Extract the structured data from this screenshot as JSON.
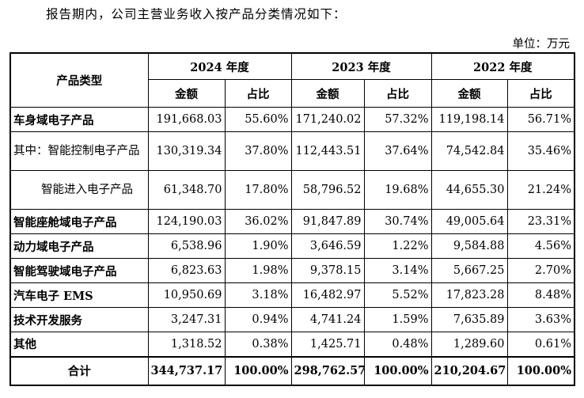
{
  "intro": "报告期内，公司主营业务收入按产品分类情况如下：",
  "unit": "单位：万元",
  "headers": {
    "category": "产品类型",
    "years": [
      "2024 年度",
      "2023 年度",
      "2022 年度"
    ],
    "amount": "金额",
    "ratio": "占比"
  },
  "rows": [
    {
      "name": "车身域电子产品",
      "v": [
        "191,668.03",
        "55.60%",
        "171,240.02",
        "57.32%",
        "119,198.14",
        "56.71%"
      ]
    },
    {
      "name": "其中：智能控制电子产品",
      "v": [
        "130,319.34",
        "37.80%",
        "112,443.51",
        "37.64%",
        "74,542.84",
        "35.46%"
      ]
    },
    {
      "name": "智能进入电子产品",
      "v": [
        "61,348.70",
        "17.80%",
        "58,796.52",
        "19.68%",
        "44,655.30",
        "21.24%"
      ]
    },
    {
      "name": "智能座舱域电子产品",
      "v": [
        "124,190.03",
        "36.02%",
        "91,847.89",
        "30.74%",
        "49,005.64",
        "23.31%"
      ]
    },
    {
      "name": "动力域电子产品",
      "v": [
        "6,538.96",
        "1.90%",
        "3,646.59",
        "1.22%",
        "9,584.88",
        "4.56%"
      ]
    },
    {
      "name": "智能驾驶域电子产品",
      "v": [
        "6,823.63",
        "1.98%",
        "9,378.15",
        "3.14%",
        "5,667.25",
        "2.70%"
      ]
    },
    {
      "name": "汽车电子 EMS",
      "v": [
        "10,950.69",
        "3.18%",
        "16,482.97",
        "5.52%",
        "17,823.28",
        "8.48%"
      ]
    },
    {
      "name": "技术开发服务",
      "v": [
        "3,247.31",
        "0.94%",
        "4,741.24",
        "1.59%",
        "7,635.89",
        "3.63%"
      ]
    },
    {
      "name": "其他",
      "v": [
        "1,318.52",
        "0.38%",
        "1,425.71",
        "0.48%",
        "1,289.60",
        "0.61%"
      ]
    }
  ],
  "total": {
    "name": "合计",
    "v": [
      "344,737.17",
      "100.00%",
      "298,762.57",
      "100.00%",
      "210,204.67",
      "100.00%"
    ]
  }
}
